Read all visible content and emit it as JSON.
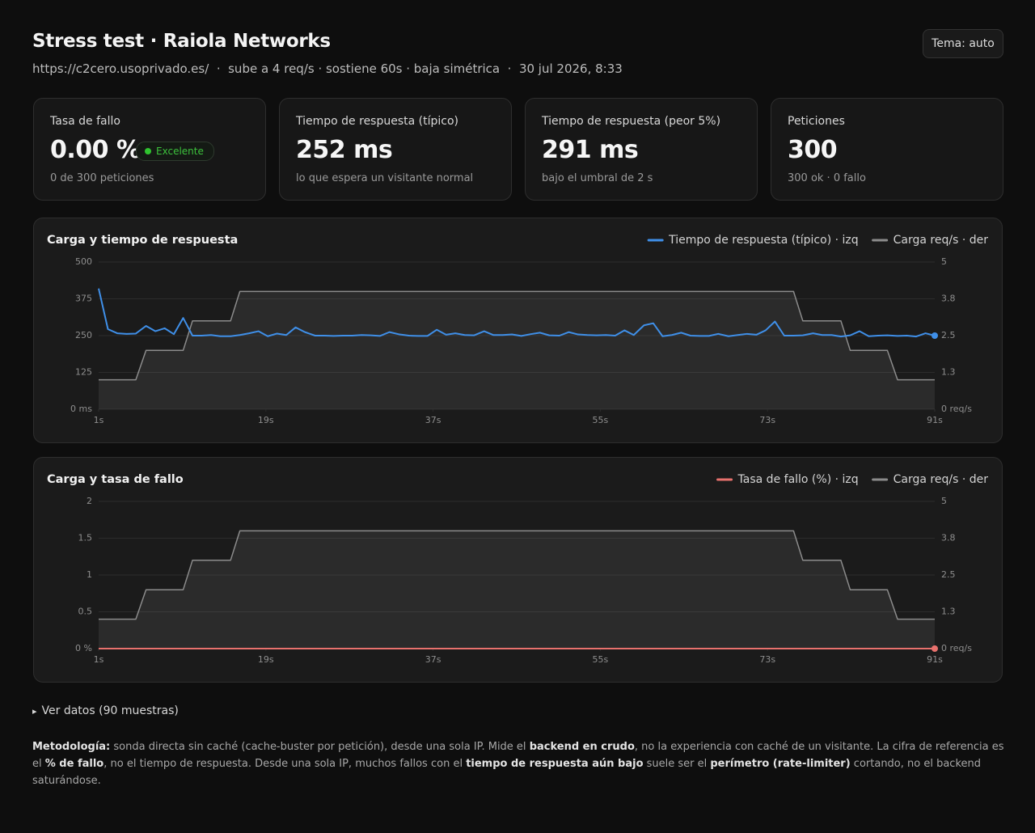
{
  "header": {
    "title": "Stress test · Raiola Networks",
    "subtitle": "https://c2cero.usoprivado.es/  ·  sube a 4 req/s · sostiene 60s · baja simétrica  ·  30 jul 2026, 8:33",
    "theme_button": "Tema: auto"
  },
  "cards": [
    {
      "label": "Tasa de fallo",
      "value": "0.00 %",
      "badge": "Excelente",
      "note": "0 de 300 peticiones"
    },
    {
      "label": "Tiempo de respuesta (típico)",
      "value": "252 ms",
      "note": "lo que espera un visitante normal"
    },
    {
      "label": "Tiempo de respuesta (peor 5%)",
      "value": "291 ms",
      "note": "bajo el umbral de 2 s"
    },
    {
      "label": "Peticiones",
      "value": "300",
      "note": "300 ok · 0 fallo"
    }
  ],
  "chart_data": [
    {
      "type": "line",
      "title": "Carga y tiempo de respuesta",
      "x": [
        1.0,
        2.0,
        3.0,
        4.0,
        5.0,
        6.1,
        7.1,
        8.1,
        9.1,
        10.1,
        11.1,
        12.1,
        13.1,
        14.1,
        15.2,
        16.2,
        17.2,
        18.2,
        19.2,
        20.2,
        21.2,
        22.2,
        23.2,
        24.3,
        25.3,
        26.3,
        27.3,
        28.3,
        29.3,
        30.3,
        31.3,
        32.3,
        33.4,
        34.4,
        35.4,
        36.4,
        37.4,
        38.4,
        39.4,
        40.4,
        41.4,
        42.5,
        43.5,
        44.5,
        45.5,
        46.5,
        47.5,
        48.5,
        49.5,
        50.6,
        51.6,
        52.6,
        53.6,
        54.6,
        55.6,
        56.6,
        57.6,
        58.6,
        59.7,
        60.7,
        61.7,
        62.7,
        63.7,
        64.7,
        65.7,
        66.7,
        67.7,
        68.8,
        69.8,
        70.8,
        71.8,
        72.8,
        73.8,
        74.8,
        75.8,
        76.8,
        77.9,
        78.9,
        79.9,
        80.9,
        81.9,
        82.9,
        83.9,
        84.9,
        85.9,
        87.0,
        88.0,
        89.0,
        90.0,
        91.0
      ],
      "xlim": [
        1,
        91
      ],
      "xticks": [
        {
          "value": 1,
          "label": "1s"
        },
        {
          "value": 19,
          "label": "19s"
        },
        {
          "value": 37,
          "label": "37s"
        },
        {
          "value": 55,
          "label": "55s"
        },
        {
          "value": 73,
          "label": "73s"
        },
        {
          "value": 91,
          "label": "91s"
        }
      ],
      "ylim": [
        0,
        500
      ],
      "yticks": [
        {
          "value": 0,
          "label": "0 ms"
        },
        125,
        250,
        375,
        500
      ],
      "y2lim": [
        0,
        5
      ],
      "y2ticks": [
        {
          "value": 0,
          "label": "0 req/s"
        },
        {
          "value": 1.25,
          "label": "1.3"
        },
        2.5,
        {
          "value": 3.75,
          "label": "3.8"
        },
        5
      ],
      "grid": true,
      "legend": "top-right",
      "series": [
        {
          "name": "Tiempo de respuesta (típico) · izq",
          "color": "#3f8fe8",
          "end_marker": true,
          "values": [
            410,
            272,
            258,
            256,
            257,
            283,
            265,
            275,
            255,
            310,
            250,
            250,
            252,
            248,
            248,
            252,
            258,
            265,
            248,
            257,
            252,
            278,
            262,
            250,
            250,
            249,
            250,
            250,
            252,
            251,
            249,
            262,
            254,
            250,
            249,
            249,
            270,
            253,
            258,
            252,
            251,
            265,
            252,
            252,
            254,
            249,
            255,
            260,
            251,
            250,
            262,
            254,
            252,
            251,
            252,
            250,
            268,
            252,
            285,
            292,
            248,
            252,
            260,
            250,
            249,
            249,
            256,
            248,
            252,
            256,
            253,
            268,
            298,
            250,
            250,
            251,
            258,
            252,
            252,
            247,
            251,
            265,
            248,
            250,
            251,
            249,
            250,
            247,
            258,
            250
          ]
        },
        {
          "name": "Carga req/s · der",
          "color": "#8c8c8c",
          "axis": "y2",
          "area": true,
          "values": [
            1,
            1,
            1,
            1,
            1,
            2,
            2,
            2,
            2,
            2,
            3,
            3,
            3,
            3,
            3,
            4,
            4,
            4,
            4,
            4,
            4,
            4,
            4,
            4,
            4,
            4,
            4,
            4,
            4,
            4,
            4,
            4,
            4,
            4,
            4,
            4,
            4,
            4,
            4,
            4,
            4,
            4,
            4,
            4,
            4,
            4,
            4,
            4,
            4,
            4,
            4,
            4,
            4,
            4,
            4,
            4,
            4,
            4,
            4,
            4,
            4,
            4,
            4,
            4,
            4,
            4,
            4,
            4,
            4,
            4,
            4,
            4,
            4,
            4,
            4,
            3,
            3,
            3,
            3,
            3,
            2,
            2,
            2,
            2,
            2,
            1,
            1,
            1,
            1,
            1
          ]
        }
      ]
    },
    {
      "type": "line",
      "title": "Carga y tasa de fallo",
      "x": [
        1.0,
        2.0,
        3.0,
        4.0,
        5.0,
        6.1,
        7.1,
        8.1,
        9.1,
        10.1,
        11.1,
        12.1,
        13.1,
        14.1,
        15.2,
        16.2,
        17.2,
        18.2,
        19.2,
        20.2,
        21.2,
        22.2,
        23.2,
        24.3,
        25.3,
        26.3,
        27.3,
        28.3,
        29.3,
        30.3,
        31.3,
        32.3,
        33.4,
        34.4,
        35.4,
        36.4,
        37.4,
        38.4,
        39.4,
        40.4,
        41.4,
        42.5,
        43.5,
        44.5,
        45.5,
        46.5,
        47.5,
        48.5,
        49.5,
        50.6,
        51.6,
        52.6,
        53.6,
        54.6,
        55.6,
        56.6,
        57.6,
        58.6,
        59.7,
        60.7,
        61.7,
        62.7,
        63.7,
        64.7,
        65.7,
        66.7,
        67.7,
        68.8,
        69.8,
        70.8,
        71.8,
        72.8,
        73.8,
        74.8,
        75.8,
        76.8,
        77.9,
        78.9,
        79.9,
        80.9,
        81.9,
        82.9,
        83.9,
        84.9,
        85.9,
        87.0,
        88.0,
        89.0,
        90.0,
        91.0
      ],
      "xlim": [
        1,
        91
      ],
      "xticks": [
        {
          "value": 1,
          "label": "1s"
        },
        {
          "value": 19,
          "label": "19s"
        },
        {
          "value": 37,
          "label": "37s"
        },
        {
          "value": 55,
          "label": "55s"
        },
        {
          "value": 73,
          "label": "73s"
        },
        {
          "value": 91,
          "label": "91s"
        }
      ],
      "ylim": [
        0,
        2
      ],
      "yticks": [
        {
          "value": 0,
          "label": "0 %"
        },
        0.5,
        1,
        1.5,
        2
      ],
      "y2lim": [
        0,
        5
      ],
      "y2ticks": [
        {
          "value": 0,
          "label": "0 req/s"
        },
        {
          "value": 1.25,
          "label": "1.3"
        },
        2.5,
        {
          "value": 3.75,
          "label": "3.8"
        },
        5
      ],
      "grid": true,
      "legend": "top-right",
      "series": [
        {
          "name": "Tasa de fallo (%) · izq",
          "color": "#e8716d",
          "end_marker": true,
          "values": [
            0,
            0,
            0,
            0,
            0,
            0,
            0,
            0,
            0,
            0,
            0,
            0,
            0,
            0,
            0,
            0,
            0,
            0,
            0,
            0,
            0,
            0,
            0,
            0,
            0,
            0,
            0,
            0,
            0,
            0,
            0,
            0,
            0,
            0,
            0,
            0,
            0,
            0,
            0,
            0,
            0,
            0,
            0,
            0,
            0,
            0,
            0,
            0,
            0,
            0,
            0,
            0,
            0,
            0,
            0,
            0,
            0,
            0,
            0,
            0,
            0,
            0,
            0,
            0,
            0,
            0,
            0,
            0,
            0,
            0,
            0,
            0,
            0,
            0,
            0,
            0,
            0,
            0,
            0,
            0,
            0,
            0,
            0,
            0,
            0,
            0,
            0,
            0,
            0,
            0
          ]
        },
        {
          "name": "Carga req/s · der",
          "color": "#8c8c8c",
          "axis": "y2",
          "area": true,
          "values": [
            1,
            1,
            1,
            1,
            1,
            2,
            2,
            2,
            2,
            2,
            3,
            3,
            3,
            3,
            3,
            4,
            4,
            4,
            4,
            4,
            4,
            4,
            4,
            4,
            4,
            4,
            4,
            4,
            4,
            4,
            4,
            4,
            4,
            4,
            4,
            4,
            4,
            4,
            4,
            4,
            4,
            4,
            4,
            4,
            4,
            4,
            4,
            4,
            4,
            4,
            4,
            4,
            4,
            4,
            4,
            4,
            4,
            4,
            4,
            4,
            4,
            4,
            4,
            4,
            4,
            4,
            4,
            4,
            4,
            4,
            4,
            4,
            4,
            4,
            4,
            3,
            3,
            3,
            3,
            3,
            2,
            2,
            2,
            2,
            2,
            1,
            1,
            1,
            1,
            1
          ]
        }
      ]
    }
  ],
  "details": "Ver datos (90 muestras)",
  "methodology": [
    {
      "text": "Metodología:",
      "bold": true
    },
    {
      "text": " sonda directa sin caché (cache-buster por petición), desde una sola IP. Mide el ",
      "bold": false
    },
    {
      "text": "backend en crudo",
      "bold": true
    },
    {
      "text": ", no la experiencia con caché de un visitante. La cifra de referencia es el ",
      "bold": false
    },
    {
      "text": "% de fallo",
      "bold": true
    },
    {
      "text": ", no el tiempo de respuesta. Desde una sola IP, muchos fallos con el ",
      "bold": false
    },
    {
      "text": "tiempo de respuesta aún bajo",
      "bold": true
    },
    {
      "text": " suele ser el ",
      "bold": false
    },
    {
      "text": "perímetro (rate-limiter)",
      "bold": true
    },
    {
      "text": " cortando, no el backend saturándose.",
      "bold": false
    }
  ]
}
